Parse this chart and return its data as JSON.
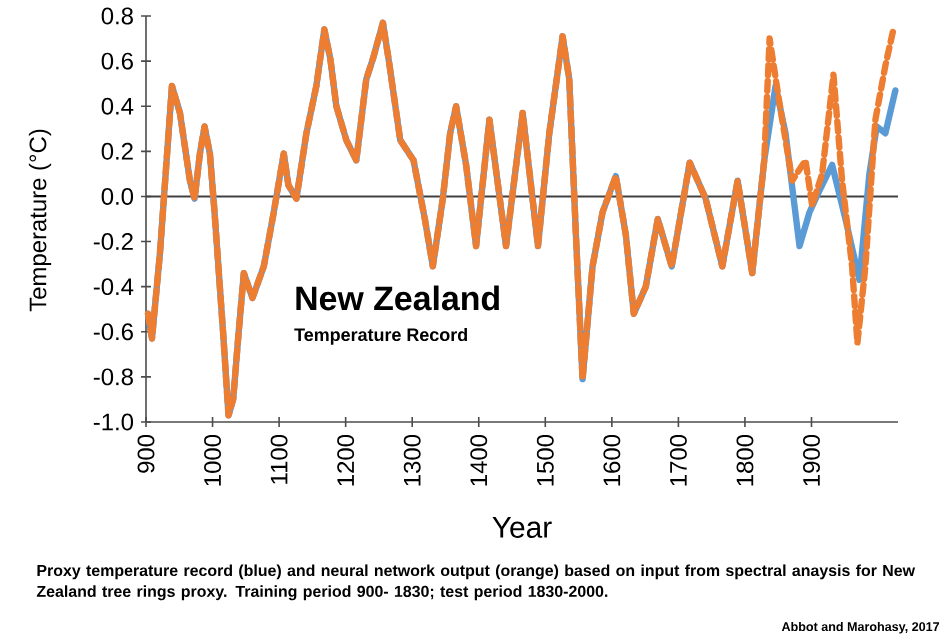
{
  "chart_data": {
    "type": "line",
    "title": "New Zealand",
    "subtitle": "Temperature Record",
    "xlabel": "Year",
    "ylabel": "Temperature (°C)",
    "annotations": [
      "Proxy temperature record (blue) and neural network output (orange) based on input from spectral anaysis for New Zealand tree rings proxy.  Training period 900- 1830; test period 1830-2000.",
      "Abbot and Marohasy, 2017"
    ],
    "xlim": [
      900,
      2030
    ],
    "xticks": [
      900,
      1000,
      1100,
      1200,
      1300,
      1400,
      1500,
      1600,
      1700,
      1800,
      1900
    ],
    "ylim": [
      -1.0,
      0.8
    ],
    "yticks": [
      {
        "value": -1.0,
        "label": "-1.0"
      },
      {
        "value": -0.8,
        "label": "-0.8"
      },
      {
        "value": -0.6,
        "label": "-0.6"
      },
      {
        "value": -0.4,
        "label": "-0.4"
      },
      {
        "value": -0.2,
        "label": "-0.2"
      },
      {
        "value": 0.0,
        "label": "0.0"
      },
      {
        "value": 0.2,
        "label": "0.2"
      },
      {
        "value": 0.4,
        "label": "0.4"
      },
      {
        "value": 0.6,
        "label": "0.6"
      },
      {
        "value": 0.8,
        "label": "0.8"
      }
    ],
    "ref_lines": [
      {
        "axis": "y",
        "value": 0,
        "color": "#404040"
      }
    ],
    "series": [
      {
        "color": "#5b9bd5",
        "line_style": "solid",
        "x": [
          903,
          909,
          921,
          939,
          951,
          966,
          973,
          981,
          988,
          996,
          1003,
          1016,
          1024,
          1031,
          1039,
          1047,
          1060,
          1077,
          1092,
          1107,
          1114,
          1126,
          1141,
          1156,
          1168,
          1177,
          1186,
          1201,
          1216,
          1231,
          1241,
          1256,
          1266,
          1282,
          1302,
          1319,
          1331,
          1346,
          1357,
          1366,
          1381,
          1396,
          1416,
          1441,
          1466,
          1489,
          1506,
          1526,
          1536,
          1546,
          1556,
          1571,
          1586,
          1606,
          1621,
          1633,
          1651,
          1669,
          1690,
          1717,
          1741,
          1766,
          1789,
          1811,
          1829,
          1846,
          1861,
          1882,
          1897,
          1911,
          1931,
          1951,
          1972,
          1987,
          1998,
          2011,
          2026
        ],
        "values": [
          -0.52,
          -0.63,
          -0.25,
          0.49,
          0.37,
          0.07,
          -0.01,
          0.19,
          0.31,
          0.19,
          -0.07,
          -0.61,
          -0.97,
          -0.9,
          -0.61,
          -0.34,
          -0.45,
          -0.31,
          -0.07,
          0.19,
          0.05,
          -0.01,
          0.28,
          0.49,
          0.74,
          0.61,
          0.4,
          0.25,
          0.16,
          0.52,
          0.61,
          0.77,
          0.58,
          0.25,
          0.16,
          -0.1,
          -0.31,
          -0.01,
          0.28,
          0.4,
          0.14,
          -0.22,
          0.34,
          -0.22,
          0.37,
          -0.22,
          0.28,
          0.71,
          0.52,
          -0.17,
          -0.81,
          -0.31,
          -0.07,
          0.09,
          -0.17,
          -0.52,
          -0.4,
          -0.1,
          -0.31,
          0.15,
          -0.01,
          -0.31,
          0.07,
          -0.34,
          0.16,
          0.49,
          0.28,
          -0.22,
          -0.07,
          0.02,
          0.14,
          -0.1,
          -0.37,
          0.1,
          0.31,
          0.28,
          0.47
        ]
      },
      {
        "color": "#ed7d31",
        "line_style": "dashed",
        "x": [
          903,
          909,
          921,
          939,
          951,
          966,
          973,
          981,
          988,
          996,
          1003,
          1016,
          1024,
          1031,
          1039,
          1047,
          1060,
          1077,
          1092,
          1107,
          1114,
          1126,
          1141,
          1156,
          1168,
          1177,
          1186,
          1201,
          1216,
          1231,
          1241,
          1256,
          1266,
          1282,
          1302,
          1319,
          1331,
          1346,
          1357,
          1366,
          1381,
          1396,
          1416,
          1441,
          1466,
          1489,
          1506,
          1526,
          1536,
          1546,
          1556,
          1571,
          1586,
          1606,
          1621,
          1633,
          1651,
          1669,
          1690,
          1717,
          1741,
          1766,
          1789,
          1811,
          1829,
          1837,
          1851,
          1871,
          1891,
          1901,
          1916,
          1933,
          1946,
          1961,
          1969,
          1981,
          1996,
          2011,
          2023
        ],
        "values": [
          -0.52,
          -0.63,
          -0.25,
          0.49,
          0.37,
          0.07,
          -0.01,
          0.19,
          0.31,
          0.19,
          -0.07,
          -0.61,
          -0.97,
          -0.9,
          -0.61,
          -0.34,
          -0.45,
          -0.31,
          -0.07,
          0.19,
          0.05,
          -0.01,
          0.28,
          0.49,
          0.74,
          0.61,
          0.4,
          0.25,
          0.16,
          0.52,
          0.61,
          0.77,
          0.58,
          0.25,
          0.16,
          -0.1,
          -0.31,
          -0.01,
          0.28,
          0.4,
          0.14,
          -0.22,
          0.34,
          -0.22,
          0.37,
          -0.22,
          0.28,
          0.71,
          0.52,
          -0.17,
          -0.81,
          -0.31,
          -0.07,
          0.09,
          -0.17,
          -0.52,
          -0.4,
          -0.1,
          -0.31,
          0.15,
          -0.01,
          -0.31,
          0.07,
          -0.34,
          0.16,
          0.7,
          0.43,
          0.07,
          0.16,
          -0.04,
          0.1,
          0.54,
          0.07,
          -0.31,
          -0.65,
          -0.31,
          0.34,
          0.58,
          0.74
        ]
      }
    ]
  }
}
